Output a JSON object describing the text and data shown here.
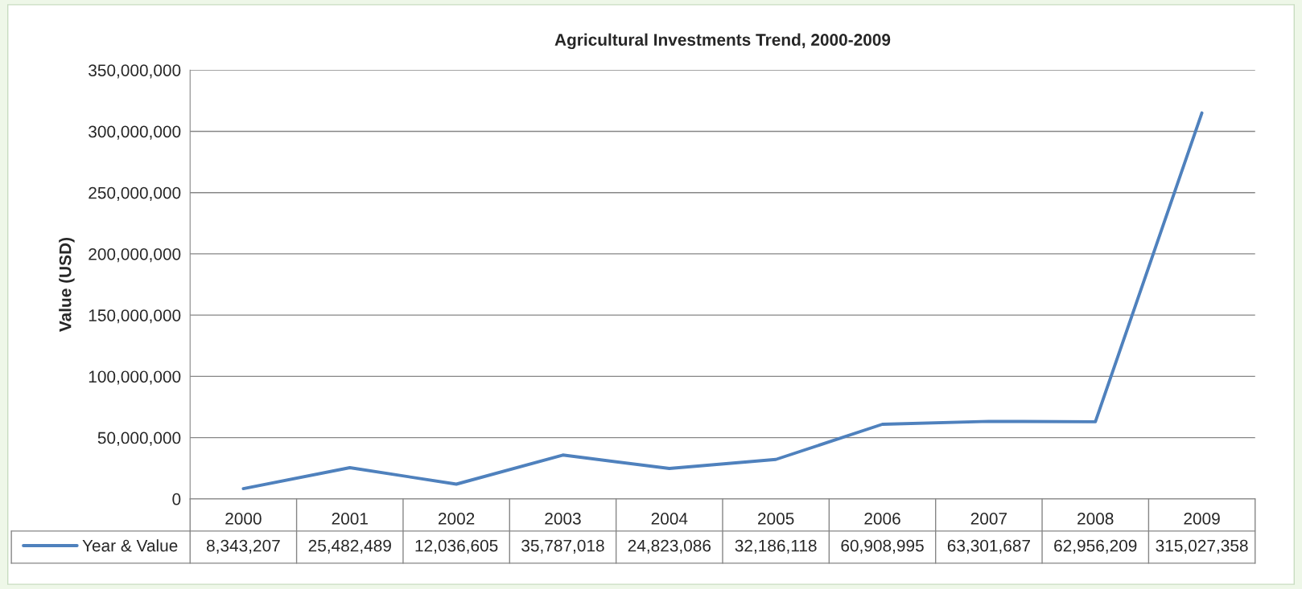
{
  "chart_data": {
    "type": "line",
    "title": "Agricultural Investments Trend, 2000-2009",
    "ylabel": "Value (USD)",
    "categories": [
      "2000",
      "2001",
      "2002",
      "2003",
      "2004",
      "2005",
      "2006",
      "2007",
      "2008",
      "2009"
    ],
    "series": [
      {
        "name": "Year & Value",
        "color": "#4f81bd",
        "values": [
          8343207,
          25482489,
          12036605,
          35787018,
          24823086,
          32186118,
          60908995,
          63301687,
          62956209,
          315027358
        ],
        "value_labels": [
          "8,343,207",
          "25,482,489",
          "12,036,605",
          "35,787,018",
          "24,823,086",
          "32,186,118",
          "60,908,995",
          "63,301,687",
          "62,956,209",
          "315,027,358"
        ]
      }
    ],
    "ylim": [
      0,
      350000000
    ],
    "yticks": [
      {
        "value": 0,
        "label": "0"
      },
      {
        "value": 50000000,
        "label": "50,000,000"
      },
      {
        "value": 100000000,
        "label": "100,000,000"
      },
      {
        "value": 150000000,
        "label": "150,000,000"
      },
      {
        "value": 200000000,
        "label": "200,000,000"
      },
      {
        "value": 250000000,
        "label": "250,000,000"
      },
      {
        "value": 300000000,
        "label": "300,000,000"
      },
      {
        "value": 350000000,
        "label": "350,000,000"
      }
    ],
    "grid": "y",
    "legend": "bottom",
    "marker": "none",
    "line_style": "solid"
  }
}
